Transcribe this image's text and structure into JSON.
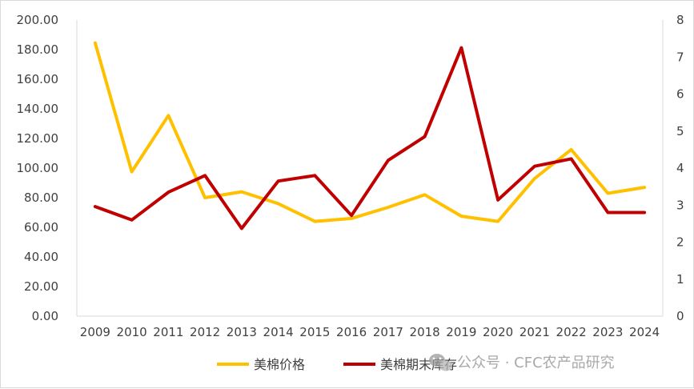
{
  "chart_data": {
    "type": "line",
    "categories": [
      "2009",
      "2010",
      "2011",
      "2012",
      "2013",
      "2014",
      "2015",
      "2016",
      "2017",
      "2018",
      "2019",
      "2020",
      "2021",
      "2022",
      "2023",
      "2024"
    ],
    "series": [
      {
        "name": "美棉价格",
        "axis": "left",
        "color": "#FFC000",
        "values": [
          184.5,
          97.5,
          135.5,
          80,
          84,
          76,
          64,
          66,
          73.5,
          82,
          67.5,
          64,
          93,
          112.5,
          83,
          87
        ]
      },
      {
        "name": "美棉期末库存",
        "axis": "right",
        "color": "#C00000",
        "values": [
          2.96,
          2.6,
          3.35,
          3.8,
          2.37,
          3.65,
          3.8,
          2.72,
          4.21,
          4.85,
          7.25,
          3.14,
          4.05,
          4.25,
          2.8,
          2.8
        ]
      }
    ],
    "y_left": {
      "min": 0,
      "max": 200,
      "step": 20,
      "tick_labels": [
        "0.00",
        "20.00",
        "40.00",
        "60.00",
        "80.00",
        "100.00",
        "120.00",
        "140.00",
        "160.00",
        "180.00",
        "200.00"
      ]
    },
    "y_right": {
      "min": 0,
      "max": 8,
      "step": 1,
      "tick_labels": [
        "0",
        "1",
        "2",
        "3",
        "4",
        "5",
        "6",
        "7",
        "8"
      ]
    },
    "grid": false,
    "legend_position": "bottom-center"
  },
  "watermark": {
    "text": "公众号 · CFC农产品研究",
    "icon": "wechat-icon"
  }
}
